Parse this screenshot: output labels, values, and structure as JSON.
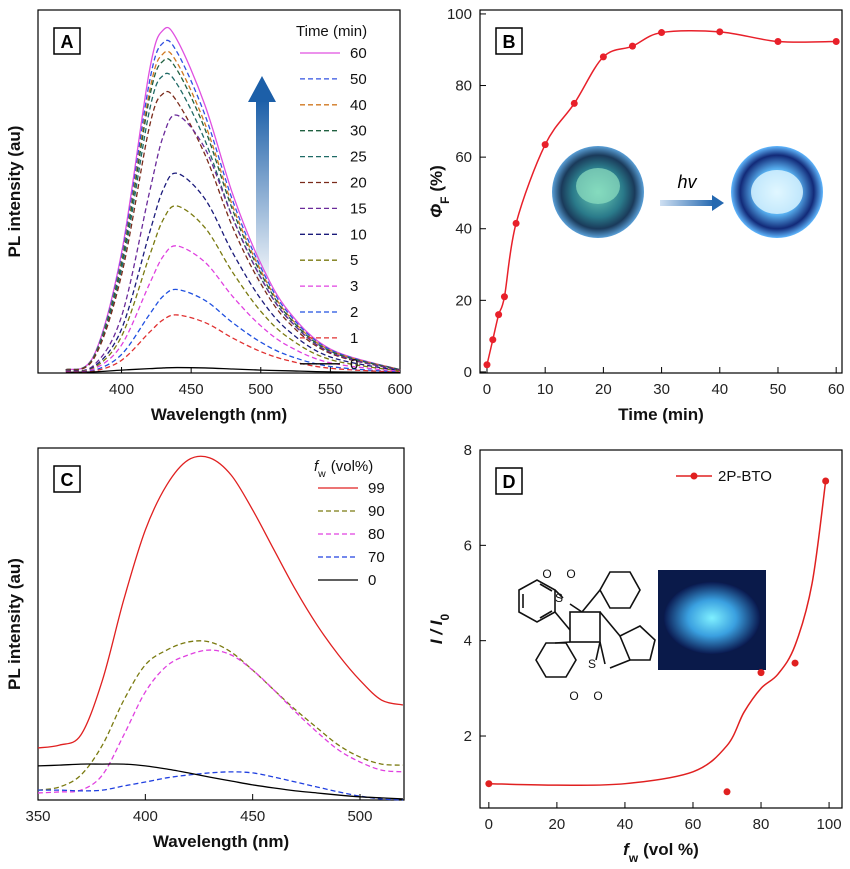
{
  "chart_data": [
    {
      "type": "line",
      "panel_label": "A",
      "xlabel": "Wavelength (nm)",
      "ylabel": "PL intensity (au)",
      "legend_title": "Time (min)",
      "x": [
        360,
        380,
        400,
        420,
        430,
        440,
        460,
        480,
        500,
        520,
        550,
        600
      ],
      "xlim": [
        340,
        600
      ],
      "xticks": [
        400,
        450,
        500,
        550,
        600
      ],
      "ylim": [
        0,
        100
      ],
      "series": [
        {
          "name": "60",
          "color": "#e050e0",
          "dash": false,
          "values": [
            0.9,
            4.7,
            33.1,
            83.2,
            94.5,
            91.7,
            73.7,
            49.1,
            30.2,
            17,
            6.6,
            0.9
          ]
        },
        {
          "name": "50",
          "color": "#3050e0",
          "dash": true,
          "values": [
            0.9,
            4.6,
            31.9,
            80.1,
            91,
            88.3,
            71,
            47.3,
            29.1,
            16.4,
            6.4,
            0.9
          ]
        },
        {
          "name": "40",
          "color": "#d07820",
          "dash": true,
          "values": [
            0.9,
            4.4,
            30.8,
            77.4,
            88,
            85.4,
            68.6,
            45.8,
            28.2,
            15.8,
            6.2,
            0.9
          ]
        },
        {
          "name": "30",
          "color": "#206040",
          "dash": true,
          "values": [
            0.9,
            4.3,
            30.1,
            75.7,
            86,
            83.4,
            67.1,
            44.7,
            27.5,
            15.5,
            6,
            0.9
          ]
        },
        {
          "name": "25",
          "color": "#1f6a66",
          "dash": true,
          "values": [
            0.8,
            4.1,
            28.7,
            72.2,
            82,
            79.5,
            64,
            42.6,
            26.2,
            14.8,
            5.7,
            0.8
          ]
        },
        {
          "name": "20",
          "color": "#7a2a1a",
          "dash": true,
          "values": [
            0.8,
            3.9,
            27,
            67.8,
            77,
            74.7,
            60.1,
            40,
            24.6,
            13.9,
            5.4,
            0.8
          ]
        },
        {
          "name": "15",
          "color": "#6a2a9a",
          "dash": true,
          "values": [
            0.7,
            2.1,
            15.6,
            49.7,
            65.3,
            71,
            61.8,
            42.6,
            26.3,
            14.9,
            5.7,
            0.7
          ]
        },
        {
          "name": "10",
          "color": "#1a1a7a",
          "dash": true,
          "values": [
            0.6,
            1.7,
            12.1,
            38.5,
            50.6,
            55,
            47.9,
            33,
            20.4,
            11.6,
            4.4,
            0.6
          ]
        },
        {
          "name": "5",
          "color": "#7a7a10",
          "dash": true,
          "values": [
            0.5,
            1.4,
            10.1,
            32.2,
            42.3,
            46,
            40,
            27.6,
            17,
            9.7,
            3.7,
            0.5
          ]
        },
        {
          "name": "3",
          "color": "#e040e0",
          "dash": true,
          "values": [
            0.4,
            1.1,
            7.7,
            24.5,
            32.2,
            35,
            30.5,
            21,
            13,
            7.4,
            2.8,
            0.4
          ]
        },
        {
          "name": "2",
          "color": "#2050e0",
          "dash": true,
          "values": [
            0.2,
            0.7,
            5.1,
            16.1,
            21.2,
            23,
            20,
            13.8,
            8.5,
            4.8,
            1.8,
            0.2
          ]
        },
        {
          "name": "1",
          "color": "#e03030",
          "dash": true,
          "values": [
            0.2,
            0.5,
            3.5,
            11.2,
            14.7,
            16,
            13.9,
            9.6,
            5.9,
            3.4,
            1.3,
            0.2
          ]
        },
        {
          "name": "0",
          "color": "#000000",
          "dash": false,
          "values": [
            0.2,
            0.3,
            0.8,
            1.2,
            1.4,
            1.5,
            1.4,
            1.1,
            0.8,
            0.6,
            0.3,
            0.1
          ]
        }
      ]
    },
    {
      "type": "scatter_line",
      "panel_label": "B",
      "xlabel": "Time (min)",
      "ylabel": {
        "symbol": "Φ",
        "sub": "F",
        "unit": "(%)"
      },
      "annotation": "hv",
      "x": [
        0,
        1,
        2,
        3,
        5,
        10,
        15,
        20,
        25,
        30,
        40,
        50,
        60
      ],
      "values": [
        2,
        9,
        16,
        21,
        41.5,
        63.5,
        75,
        88,
        91,
        94.8,
        95,
        92.3,
        92.3
      ],
      "color": "#e8202a",
      "xlim": [
        -1.2,
        61
      ],
      "xticks": [
        0,
        10,
        20,
        30,
        40,
        50,
        60
      ],
      "ylim": [
        -0.3,
        101.1
      ],
      "yticks": [
        0,
        20,
        40,
        60,
        80,
        100
      ]
    },
    {
      "type": "line",
      "panel_label": "C",
      "xlabel": "Wavelength (nm)",
      "ylabel": "PL intensity (au)",
      "legend_title": {
        "symbol": "f",
        "sub": "w",
        "unit": "(vol%)"
      },
      "x": [
        350,
        360,
        370,
        380,
        390,
        400,
        410,
        420,
        430,
        440,
        450,
        460,
        470,
        480,
        490,
        500,
        510,
        520
      ],
      "xlim": [
        350,
        520.5
      ],
      "xticks": [
        350,
        400,
        450,
        500
      ],
      "ylim": [
        0,
        100
      ],
      "series": [
        {
          "name": "99",
          "color": "#e02020",
          "dash": false,
          "values": [
            14.8,
            15.6,
            18.5,
            34,
            57,
            76.7,
            89.5,
            96.6,
            97.2,
            92.3,
            82.4,
            71,
            59.7,
            49.7,
            41.2,
            34,
            28.4,
            27
          ]
        },
        {
          "name": "90",
          "color": "#7a7a10",
          "dash": true,
          "values": [
            2.8,
            3.7,
            7.1,
            15.6,
            28.4,
            38.4,
            42.6,
            44.9,
            44.9,
            42,
            36.9,
            31.2,
            25.6,
            20.5,
            15.6,
            12.2,
            10.2,
            9.9
          ]
        },
        {
          "name": "80",
          "color": "#e040e0",
          "dash": true,
          "values": [
            2,
            2.3,
            2.8,
            7.1,
            18.5,
            30.7,
            38.1,
            41.2,
            42.6,
            41.2,
            36.9,
            31.2,
            25,
            19.3,
            14.2,
            10.8,
            8.5,
            8
          ]
        },
        {
          "name": "70",
          "color": "#2040e0",
          "dash": true,
          "values": [
            2.8,
            2.8,
            2.6,
            2.8,
            4,
            5.1,
            6.3,
            7.1,
            7.7,
            8,
            7.7,
            6.5,
            5.1,
            3.7,
            2.3,
            1.1,
            0.3,
            0
          ]
        },
        {
          "name": "0",
          "color": "#000000",
          "dash": false,
          "values": [
            9.7,
            9.9,
            10.2,
            10.2,
            10.2,
            9.7,
            8.8,
            7.7,
            6.5,
            5.4,
            4.3,
            3.4,
            2.6,
            2,
            1.4,
            0.9,
            0.6,
            0.3
          ]
        }
      ]
    },
    {
      "type": "scatter_fit",
      "panel_label": "D",
      "xlabel": {
        "symbol": "f",
        "sub": "w",
        "unit": "(vol %)"
      },
      "ylabel": {
        "symbol": "I / I",
        "sub": "0"
      },
      "xlim": [
        -2.6,
        103.8
      ],
      "xticks": [
        0,
        20,
        40,
        60,
        80,
        100
      ],
      "ylim": [
        0.49,
        8
      ],
      "yticks": [
        2,
        4,
        6,
        8
      ],
      "series": [
        {
          "name": "2P-BTO",
          "color": "#e02020",
          "x": [
            0,
            70,
            80,
            90,
            99
          ],
          "values": [
            1.0,
            0.83,
            3.33,
            3.53,
            7.35
          ]
        }
      ],
      "fit": {
        "x": [
          0,
          20,
          40,
          60,
          70,
          75,
          80,
          85,
          90,
          95,
          99
        ],
        "values": [
          1.0,
          0.97,
          1.0,
          1.25,
          1.8,
          2.5,
          3.0,
          3.3,
          3.9,
          5.2,
          7.35
        ]
      },
      "molecule_atoms": [
        "O",
        "O",
        "S",
        "S",
        "O",
        "O"
      ]
    }
  ]
}
